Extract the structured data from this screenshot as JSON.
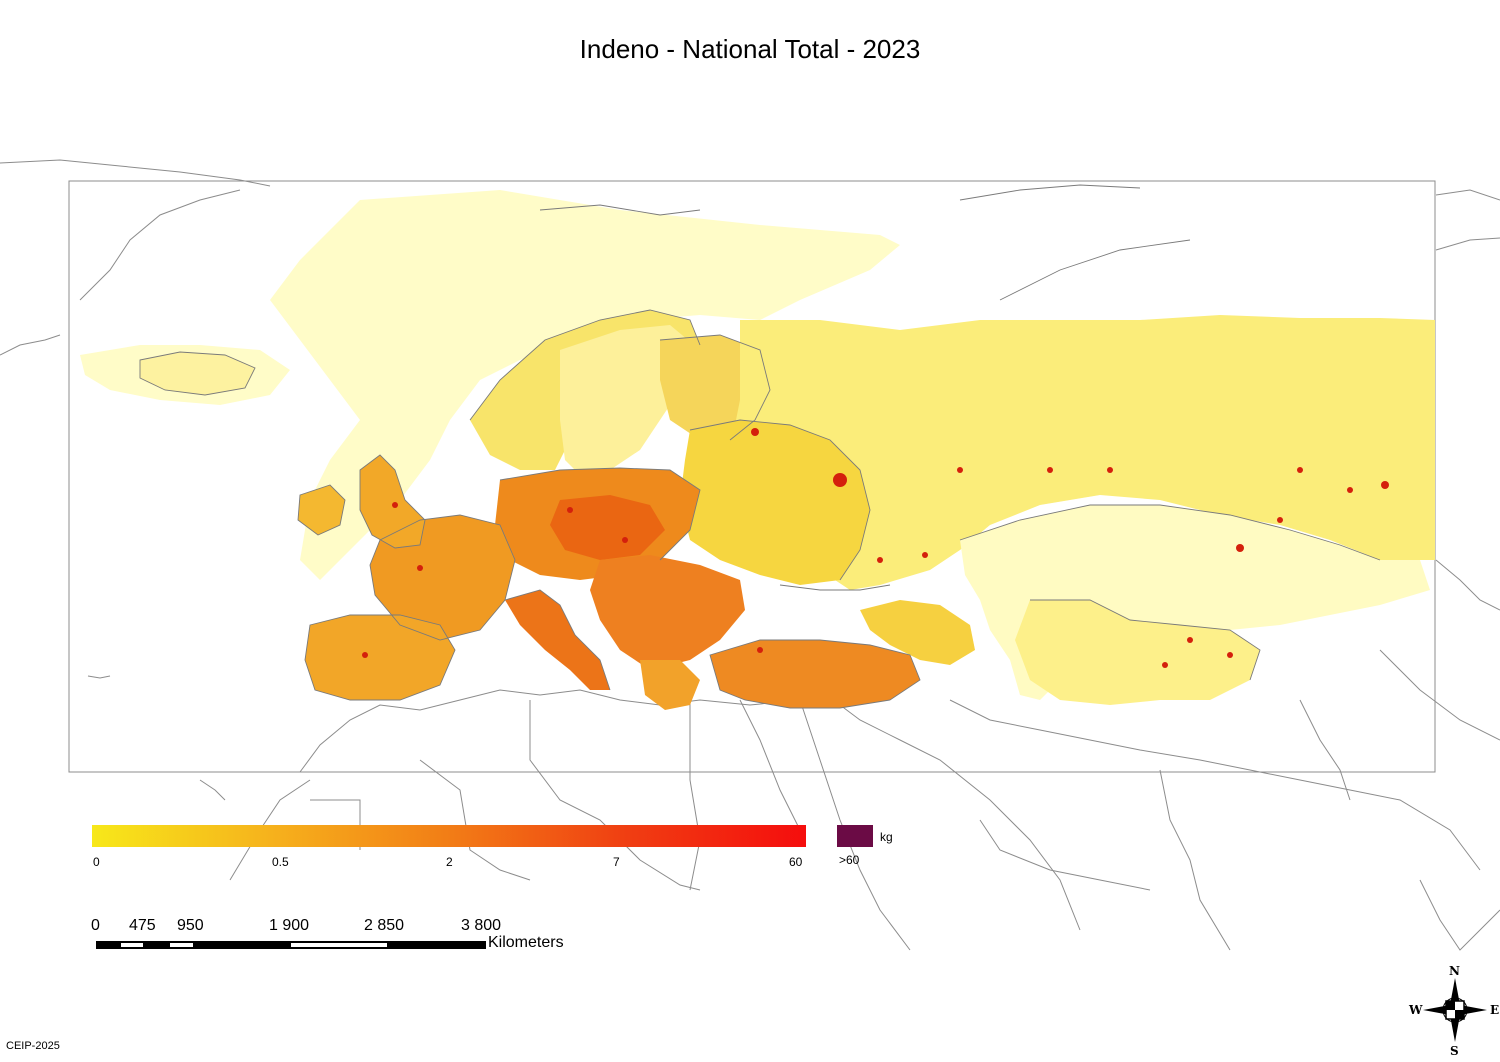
{
  "title": "Indeno - National Total - 2023",
  "legend": {
    "ticks": [
      "0",
      "0.5",
      "2",
      "7",
      "60"
    ],
    "over_label": ">60",
    "unit": "kg",
    "gradient_colors": [
      "#f7e81a",
      "#f6b21c",
      "#f27d16",
      "#f03e12",
      "#f50d0d"
    ],
    "over_color": "#6b0b45"
  },
  "scale_bar": {
    "ticks": [
      "0",
      "475",
      "950",
      "1 900",
      "2 850",
      "3 800"
    ],
    "unit": "Kilometers"
  },
  "compass": {
    "n": "N",
    "s": "S",
    "e": "E",
    "w": "W"
  },
  "credit": "CEIP-2025",
  "colors": {
    "low": "#fffbc0",
    "pale": "#fdf38a",
    "yellow": "#f6df3a",
    "orange": "#f29a1c",
    "dark_orange": "#ec6b12",
    "red": "#e8380f",
    "boundary": "#8a8a8a"
  }
}
